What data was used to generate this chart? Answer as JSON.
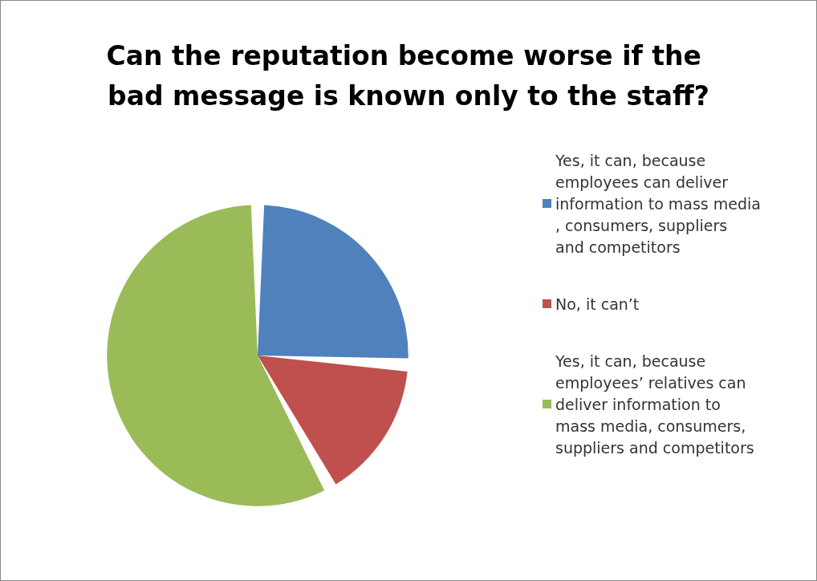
{
  "chart_data": {
    "type": "pie",
    "title": "Can the reputation become worse if the bad message is known only to the staff?",
    "categories": [
      "Yes, it can, because employees can deliver information to mass media, consumers, suppliers and competitors",
      "No, it can’t",
      "Yes, it can, because employees’ relatives can deliver information to mass media, consumers, suppliers and competitors"
    ],
    "values": [
      26,
      16,
      58
    ],
    "colors": [
      "#4f81bd",
      "#c0504d",
      "#9bbb59"
    ],
    "legend": "right"
  }
}
